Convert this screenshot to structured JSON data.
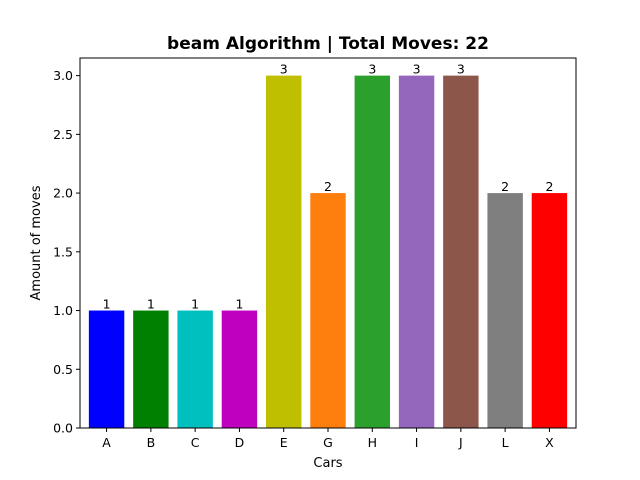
{
  "chart_data": {
    "type": "bar",
    "title": "beam Algorithm | Total Moves: 22",
    "xlabel": "Cars",
    "ylabel": "Amount of moves",
    "categories": [
      "A",
      "B",
      "C",
      "D",
      "E",
      "G",
      "H",
      "I",
      "J",
      "L",
      "X"
    ],
    "values": [
      1,
      1,
      1,
      1,
      3,
      2,
      3,
      3,
      3,
      2,
      2
    ],
    "data_labels": [
      "1",
      "1",
      "1",
      "1",
      "3",
      "2",
      "3",
      "3",
      "3",
      "2",
      "2"
    ],
    "colors": [
      "#0000ff",
      "#008000",
      "#00bfbf",
      "#bf00bf",
      "#bfbf00",
      "#ff7f0e",
      "#2ca02c",
      "#9467bd",
      "#8c564b",
      "#7f7f7f",
      "#ff0000"
    ],
    "ylim": [
      0,
      3.15
    ],
    "yticks": [
      0,
      0.5,
      1,
      1.5,
      2,
      2.5,
      3
    ],
    "ytick_labels": [
      "0.0",
      "0.5",
      "1.0",
      "1.5",
      "2.0",
      "2.5",
      "3.0"
    ],
    "grid": false,
    "legend": "none"
  }
}
